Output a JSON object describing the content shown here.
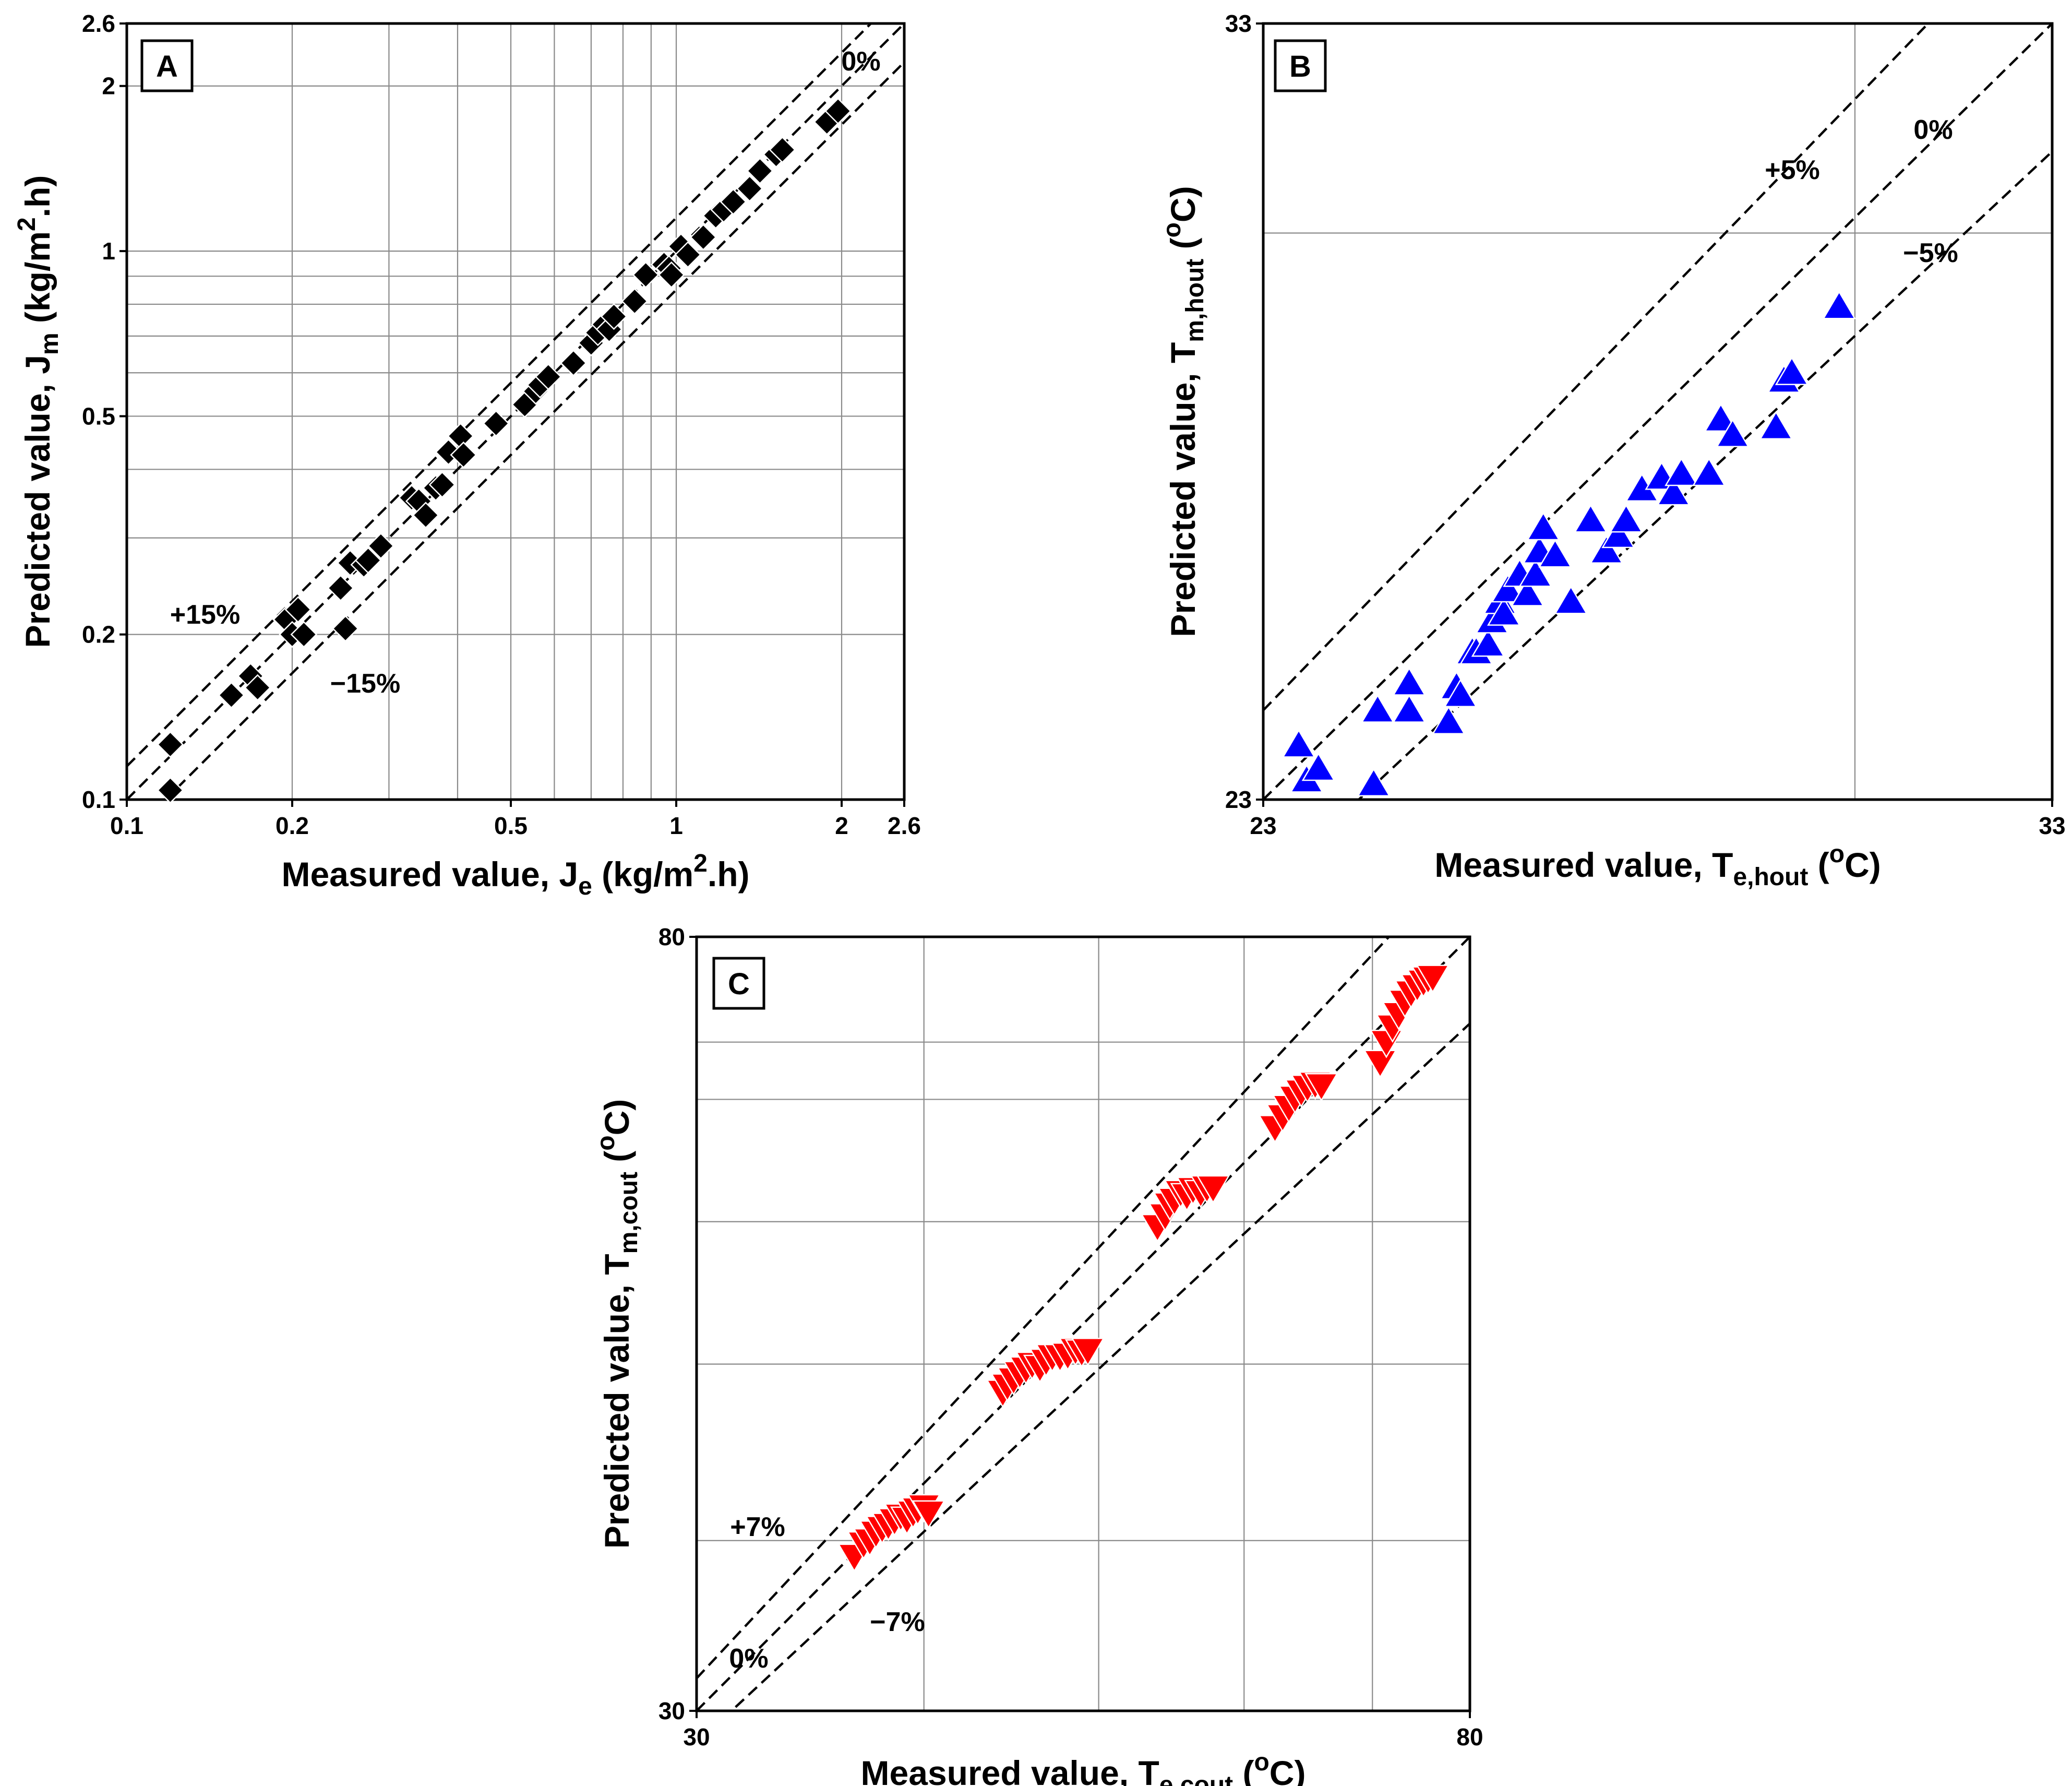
{
  "chart_data": [
    {
      "id": "A",
      "type": "scatter",
      "panel_label": "A",
      "scale": "log",
      "xlabel": "Measured value, J",
      "xlabel_sub": "e",
      "xlabel_units": " (kg/m",
      "xlabel_sup": "2",
      "xlabel_tail": ".h)",
      "ylabel": "Predicted value, J",
      "ylabel_sub": "m",
      "ylabel_units": " (kg/m",
      "ylabel_sup": "2",
      "ylabel_tail": ".h)",
      "xlim": [
        0.1,
        2.6
      ],
      "ylim": [
        0.1,
        2.6
      ],
      "x_ticks": [
        0.1,
        0.2,
        0.5,
        1,
        2,
        2.6
      ],
      "y_ticks": [
        0.1,
        0.2,
        0.5,
        1,
        2,
        2.6
      ],
      "x_tick_labels": [
        "0.1",
        "0.2",
        "0.5",
        "1",
        "2",
        "2.6"
      ],
      "y_tick_labels": [
        "0.1",
        "0.2",
        "0.5",
        "1",
        "2",
        "2.6"
      ],
      "grid": true,
      "marker": "diamond",
      "color": "#000000",
      "reference_lines": [
        {
          "label": "0%",
          "factor": 1.0
        },
        {
          "label": "+15%",
          "factor": 1.15
        },
        {
          "label": "−15%",
          "factor": 0.85
        }
      ],
      "x": [
        0.12,
        0.12,
        0.155,
        0.168,
        0.173,
        0.195,
        0.2,
        0.205,
        0.21,
        0.245,
        0.25,
        0.255,
        0.27,
        0.275,
        0.29,
        0.33,
        0.34,
        0.35,
        0.365,
        0.375,
        0.385,
        0.405,
        0.41,
        0.47,
        0.53,
        0.555,
        0.565,
        0.585,
        0.65,
        0.7,
        0.72,
        0.74,
        0.755,
        0.77,
        0.84,
        0.88,
        0.95,
        0.97,
        0.98,
        1.02,
        1.05,
        1.12,
        1.18,
        1.22,
        1.27,
        1.36,
        1.42,
        1.52,
        1.56,
        1.88,
        1.97
      ],
      "y": [
        0.104,
        0.126,
        0.155,
        0.168,
        0.16,
        0.213,
        0.2,
        0.222,
        0.2,
        0.243,
        0.205,
        0.27,
        0.268,
        0.273,
        0.29,
        0.355,
        0.35,
        0.33,
        0.37,
        0.375,
        0.43,
        0.46,
        0.425,
        0.485,
        0.525,
        0.555,
        0.57,
        0.59,
        0.625,
        0.68,
        0.71,
        0.735,
        0.72,
        0.76,
        0.81,
        0.905,
        0.945,
        0.93,
        0.905,
        1.02,
        0.985,
        1.06,
        1.16,
        1.19,
        1.23,
        1.3,
        1.4,
        1.5,
        1.53,
        1.72,
        1.8
      ]
    },
    {
      "id": "B",
      "type": "scatter",
      "panel_label": "B",
      "scale": "linear",
      "xlabel": "Measured value, T",
      "xlabel_sub": "e,hout",
      "xlabel_units": " (",
      "xlabel_sup": "o",
      "xlabel_tail": "C)",
      "ylabel": "Predicted value, T",
      "ylabel_sub": "m,hout",
      "ylabel_units": " (",
      "ylabel_sup": "o",
      "ylabel_tail": "C)",
      "xlim": [
        23,
        33
      ],
      "ylim": [
        23,
        33
      ],
      "x_ticks": [
        23,
        33
      ],
      "y_ticks": [
        23,
        33
      ],
      "x_tick_labels": [
        "23",
        "33"
      ],
      "y_tick_labels": [
        "23",
        "33"
      ],
      "grid_x": [
        30.5
      ],
      "grid_y": [
        30.3
      ],
      "marker": "triangle-up",
      "color": "#0000ff",
      "reference_lines": [
        {
          "label": "0%",
          "factor": 1.0
        },
        {
          "label": "+5%",
          "factor": 1.05
        },
        {
          "label": "−5%",
          "factor": 0.95
        }
      ],
      "x": [
        23.45,
        23.55,
        23.7,
        24.4,
        24.45,
        24.85,
        24.85,
        25.35,
        25.45,
        25.5,
        25.65,
        25.7,
        25.85,
        25.9,
        26.0,
        26.05,
        26.1,
        26.25,
        26.35,
        26.45,
        26.5,
        26.55,
        26.7,
        26.9,
        27.15,
        27.35,
        27.5,
        27.6,
        27.8,
        28.05,
        28.2,
        28.3,
        28.65,
        28.8,
        28.95,
        29.5,
        29.6,
        29.7,
        30.3
      ],
      "y": [
        23.7,
        23.25,
        23.4,
        23.2,
        24.15,
        24.5,
        24.15,
        24.0,
        24.45,
        24.35,
        24.9,
        24.9,
        25.0,
        25.3,
        25.55,
        25.4,
        25.7,
        25.9,
        25.65,
        25.9,
        26.2,
        26.5,
        26.15,
        25.55,
        26.6,
        26.2,
        26.4,
        26.6,
        27.0,
        27.15,
        26.95,
        27.2,
        27.2,
        27.9,
        27.7,
        27.8,
        28.4,
        28.5,
        29.35
      ]
    },
    {
      "id": "C",
      "type": "scatter",
      "panel_label": "C",
      "scale": "linear",
      "xlabel": "Measured value, T",
      "xlabel_sub": "e,cout",
      "xlabel_units": " (",
      "xlabel_sup": "o",
      "xlabel_tail": "C)",
      "ylabel": "Predicted value, T",
      "ylabel_sub": "m,cout",
      "ylabel_units": " (",
      "ylabel_sup": "o",
      "ylabel_tail": "C)",
      "xlim": [
        30,
        80
      ],
      "ylim": [
        30,
        80
      ],
      "x_ticks": [
        30,
        80
      ],
      "y_ticks": [
        30,
        80
      ],
      "x_tick_labels": [
        "30",
        "80"
      ],
      "y_tick_labels": [
        "30",
        "80"
      ],
      "grid_x": [
        44.7,
        56.0,
        65.4,
        73.7
      ],
      "grid_y": [
        41.0,
        52.4,
        61.6,
        69.5,
        73.2
      ],
      "marker": "triangle-down",
      "color": "#ff0000",
      "reference_lines": [
        {
          "label": "0%",
          "factor": 1.0
        },
        {
          "label": "+7%",
          "factor": 1.07
        },
        {
          "label": "−7%",
          "factor": 0.93
        }
      ],
      "x": [
        40.2,
        40.8,
        41.2,
        41.6,
        42.0,
        42.4,
        42.8,
        43.2,
        43.6,
        44.0,
        44.3,
        44.7,
        45.0,
        49.8,
        50.1,
        50.5,
        50.9,
        51.3,
        51.7,
        52.2,
        52.6,
        53.0,
        53.5,
        54.0,
        54.5,
        54.9,
        55.3,
        59.8,
        60.3,
        60.6,
        60.9,
        61.3,
        61.7,
        62.1,
        62.6,
        63.0,
        63.4,
        67.4,
        67.9,
        68.3,
        68.7,
        69.1,
        69.5,
        70.0,
        70.4,
        74.2,
        74.6,
        75.0,
        75.4,
        75.8,
        76.2,
        76.6,
        77.0,
        77.3,
        77.6
      ],
      "y": [
        40.0,
        40.8,
        41.0,
        41.5,
        41.8,
        42.0,
        42.3,
        42.6,
        42.4,
        42.8,
        43.0,
        43.2,
        42.8,
        50.6,
        51.0,
        51.4,
        51.8,
        52.1,
        52.4,
        52.2,
        52.6,
        52.9,
        52.9,
        53.0,
        53.3,
        53.2,
        53.3,
        61.3,
        62.0,
        62.7,
        63.0,
        63.5,
        63.3,
        63.7,
        63.5,
        63.8,
        63.8,
        67.7,
        68.4,
        69.0,
        69.6,
        70.0,
        70.3,
        70.5,
        70.4,
        71.9,
        73.2,
        74.2,
        75.0,
        75.8,
        76.4,
        76.8,
        77.1,
        77.3,
        77.4
      ]
    }
  ]
}
